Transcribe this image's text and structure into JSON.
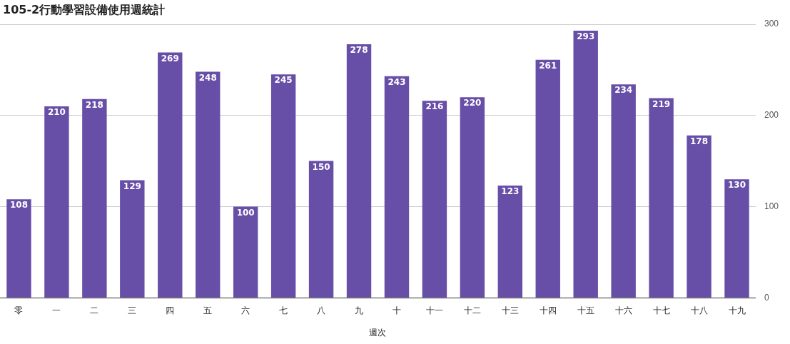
{
  "chart_data": {
    "type": "bar",
    "title": "105-2行動學習設備使用週統計",
    "xlabel": "週次",
    "categories": [
      "零",
      "一",
      "二",
      "三",
      "四",
      "五",
      "六",
      "七",
      "八",
      "九",
      "十",
      "十一",
      "十二",
      "十三",
      "十四",
      "十五",
      "十六",
      "十七",
      "十八",
      "十九"
    ],
    "values": [
      108,
      210,
      218,
      129,
      269,
      248,
      100,
      245,
      150,
      278,
      243,
      216,
      220,
      123,
      261,
      293,
      234,
      219,
      178,
      130
    ],
    "color": "#674ea7",
    "ylim": [
      0,
      300
    ],
    "yticks": [
      0,
      100,
      200,
      300
    ],
    "grid": "y",
    "data_labels": true,
    "legend": false
  }
}
